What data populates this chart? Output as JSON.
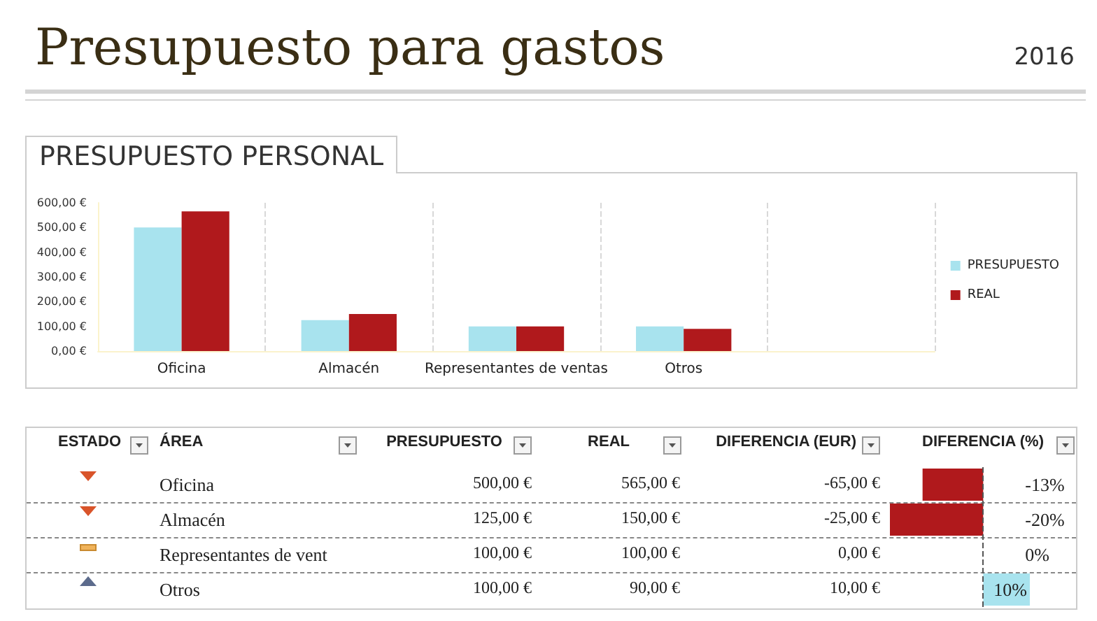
{
  "chart_data": [
    {
      "type": "other",
      "title": "Presupuesto para gastos",
      "annotations": [
        "2016"
      ]
    },
    {
      "type": "bar",
      "title": "PRESUPUESTO PERSONAL",
      "categories": [
        "Oficina",
        "Almacén",
        "Representantes de ventas",
        "Otros",
        null
      ],
      "series": [
        {
          "name": "PRESUPUESTO",
          "color": "#a8e3ee",
          "values": [
            500,
            125,
            100,
            100,
            null
          ]
        },
        {
          "name": "REAL",
          "color": "#b0191c",
          "values": [
            565,
            150,
            100,
            90,
            null
          ]
        }
      ],
      "ylim": [
        0,
        600
      ],
      "yticks": [
        {
          "value": 0,
          "label": "0,00 €"
        },
        {
          "value": 100,
          "label": "100,00 €"
        },
        {
          "value": 200,
          "label": "200,00 €"
        },
        {
          "value": 300,
          "label": "300,00 €"
        },
        {
          "value": 400,
          "label": "400,00 €"
        },
        {
          "value": 500,
          "label": "500,00 €"
        },
        {
          "value": 600,
          "label": "600,00 €"
        }
      ],
      "grid": "x",
      "legend": "right"
    },
    {
      "type": "bar",
      "orientation": "horizontal",
      "xlabel": "DIFERENCIA (%)",
      "categories": [
        "Oficina",
        "Almacén",
        "Representantes de vent",
        "Otros"
      ],
      "values": [
        -13,
        -20,
        0,
        10
      ],
      "colors": [
        "#b0191c",
        "#b0191c",
        "#a8e3ee",
        "#a8e3ee"
      ],
      "value_labels": [
        "-13%",
        "-20%",
        "0%",
        "10%"
      ],
      "ref_lines": [
        {
          "axis": "x",
          "value": 0,
          "color": "#555555",
          "line_style": "dashed"
        }
      ],
      "tick_labels": "y",
      "annotations": [
        "ESTADO",
        "ÁREA",
        "PRESUPUESTO",
        "REAL",
        "DIFERENCIA (EUR)",
        "500,00 €",
        "565,00 €",
        "-65,00 €",
        "125,00 €",
        "150,00 €",
        "-25,00 €",
        "100,00 €",
        "100,00 €",
        "0,00 €",
        "100,00 €",
        "90,00 €",
        "10,00 €"
      ]
    }
  ]
}
